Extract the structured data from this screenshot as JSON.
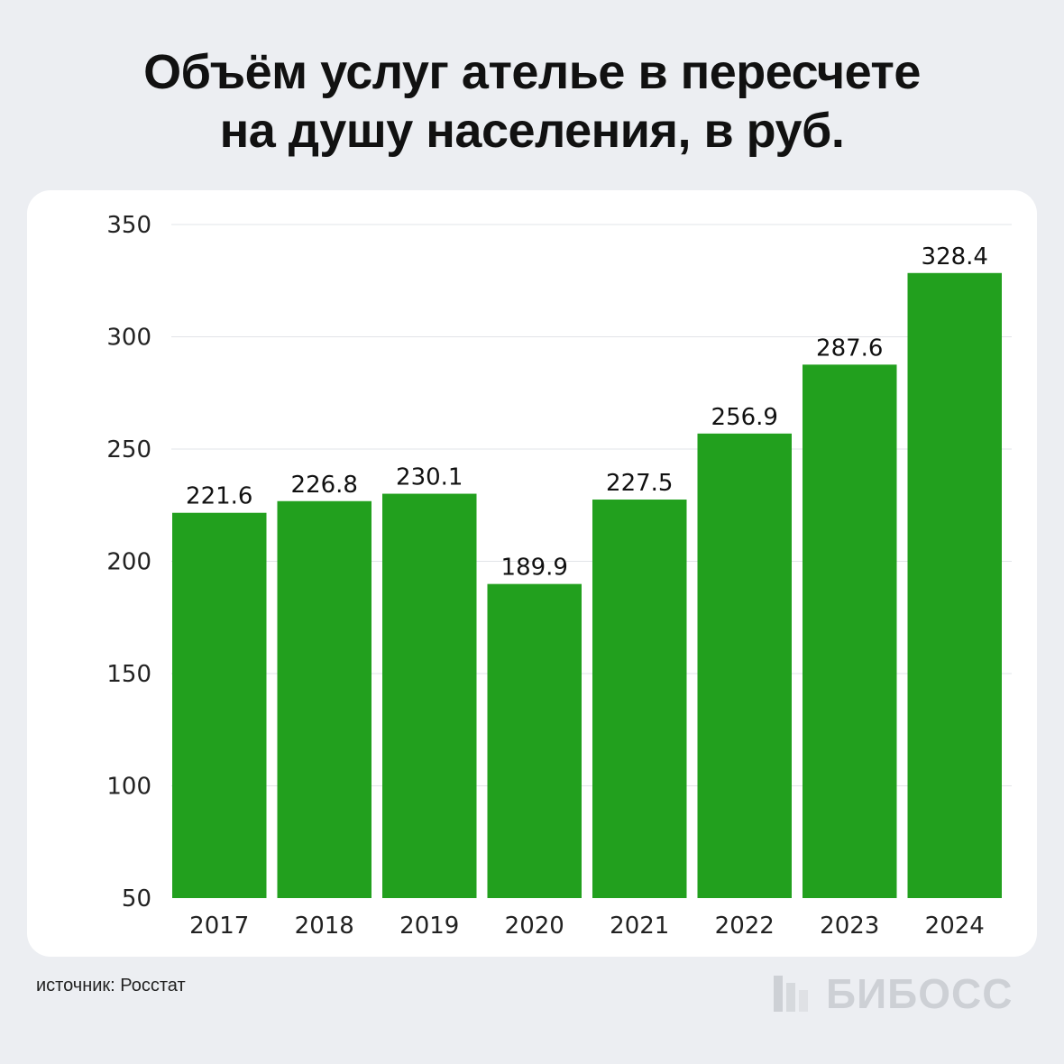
{
  "title_lines": [
    "Объём услуг ателье в пересчете",
    "на душу населения, в руб."
  ],
  "source": "источник: Росстат",
  "logo": {
    "text": "БИБОСС",
    "icon": "bars-logo-icon"
  },
  "colors": {
    "bar": "#22a01e",
    "grid": "#e2e4e8",
    "background": "#eceef2",
    "card": "#ffffff"
  },
  "chart_data": {
    "type": "bar",
    "categories": [
      "2017",
      "2018",
      "2019",
      "2020",
      "2021",
      "2022",
      "2023",
      "2024"
    ],
    "values": [
      221.6,
      226.8,
      230.1,
      189.9,
      227.5,
      256.9,
      287.6,
      328.4
    ],
    "value_labels": [
      "221.6",
      "226.8",
      "230.1",
      "189.9",
      "227.5",
      "256.9",
      "287.6",
      "328.4"
    ],
    "yticks": [
      50,
      100,
      150,
      200,
      250,
      300,
      350
    ],
    "ylim": [
      50,
      350
    ],
    "grid": true,
    "legend": "none"
  }
}
